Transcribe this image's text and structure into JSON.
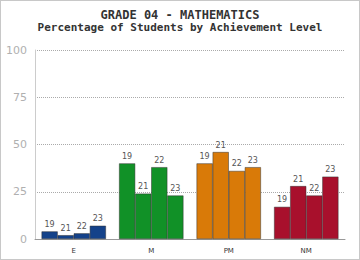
{
  "chart_data": {
    "type": "bar",
    "title": "GRADE 04 - MATHEMATICS",
    "subtitle": "Percentage of Students by Achievement Level",
    "categories": [
      "E",
      "M",
      "PM",
      "NM"
    ],
    "colors": [
      "#14428a",
      "#119127",
      "#d97a08",
      "#a8102c"
    ],
    "series": [
      {
        "name": "19",
        "values": [
          4,
          40,
          40,
          17
        ]
      },
      {
        "name": "21",
        "values": [
          2,
          24,
          46,
          28
        ]
      },
      {
        "name": "22",
        "values": [
          3,
          38,
          36,
          23
        ]
      },
      {
        "name": "23",
        "values": [
          7,
          23,
          38,
          33
        ]
      }
    ],
    "ylim": [
      0,
      100
    ],
    "yticks": [
      0,
      25,
      50,
      75,
      100
    ],
    "grid": true
  }
}
